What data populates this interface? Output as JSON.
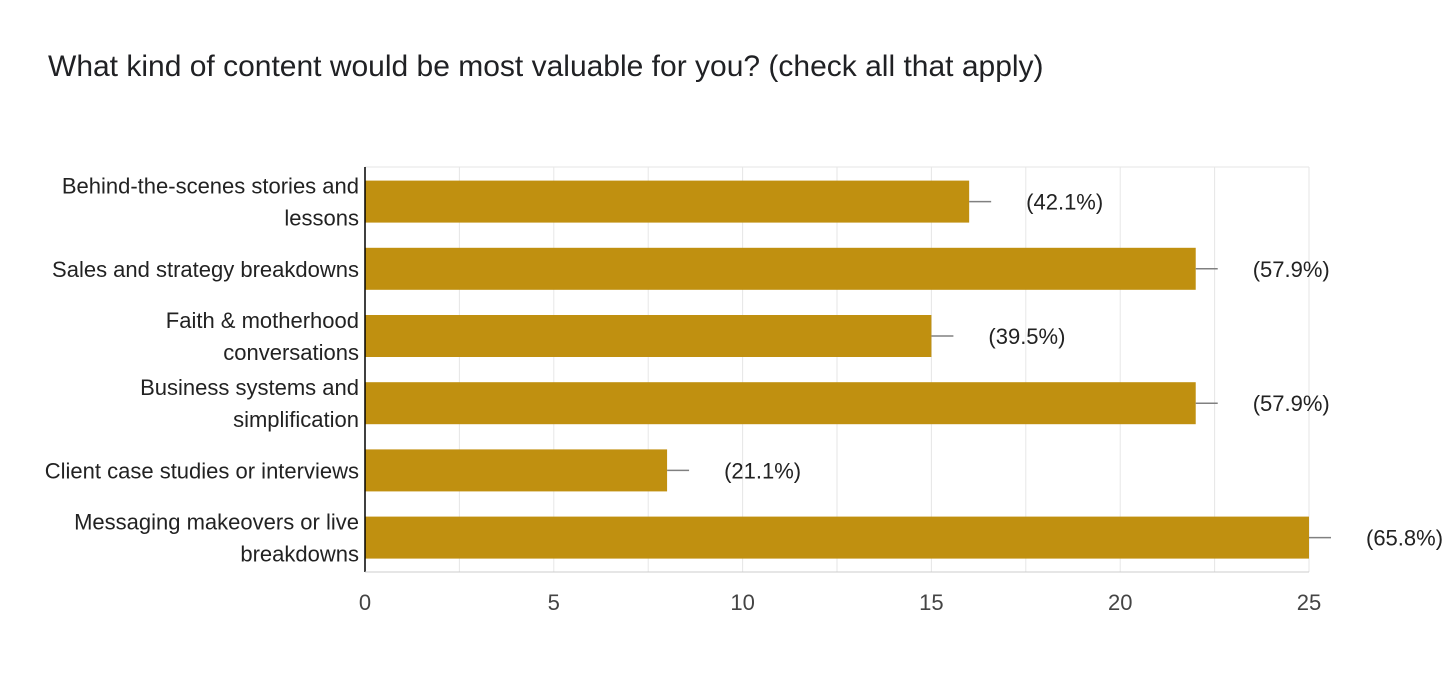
{
  "chart_data": {
    "type": "bar",
    "orientation": "horizontal",
    "title": "What kind of content would be most valuable for you? (check all that apply)",
    "categories": [
      [
        "Behind-the-scenes stories and",
        "lessons"
      ],
      [
        "Sales and strategy breakdowns"
      ],
      [
        "Faith & motherhood",
        "conversations"
      ],
      [
        "Business systems and",
        "simplification"
      ],
      [
        "Client case studies or interviews"
      ],
      [
        "Messaging makeovers or live",
        "breakdowns"
      ]
    ],
    "values": [
      16,
      22,
      15,
      22,
      8,
      25
    ],
    "percent_labels": [
      "(42.1%)",
      "(57.9%)",
      "(39.5%)",
      "(57.9%)",
      "(21.1%)",
      "(65.8%)"
    ],
    "xlim": [
      0,
      25
    ],
    "xticks": [
      0,
      5,
      10,
      15,
      20,
      25
    ],
    "grid": true,
    "bar_color": "#c09010",
    "axis_color": "#000000",
    "grid_color": "#e6e6e6",
    "leader_color": "#808080"
  }
}
